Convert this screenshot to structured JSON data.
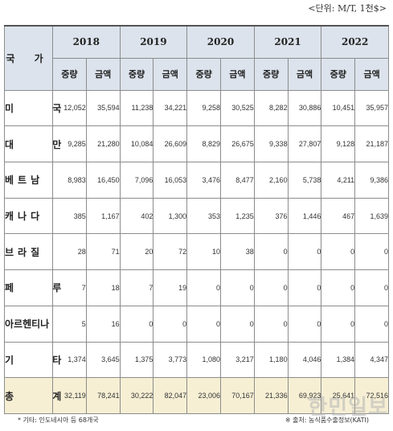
{
  "unit_label": "<단위: M/T, 1천$>",
  "header": {
    "country": "국 가",
    "years": [
      "2018",
      "2019",
      "2020",
      "2021",
      "2022"
    ],
    "sub_volume": "중량",
    "sub_amount": "금액"
  },
  "rows": [
    {
      "country": "미 국",
      "values": [
        "12,052",
        "35,594",
        "11,238",
        "34,221",
        "9,258",
        "30,525",
        "8,282",
        "30,886",
        "10,451",
        "35,957"
      ]
    },
    {
      "country": "대 만",
      "values": [
        "9,285",
        "21,280",
        "10,084",
        "26,609",
        "8,829",
        "26,675",
        "9,338",
        "27,807",
        "9,128",
        "21,187"
      ]
    },
    {
      "country": "베트남",
      "values": [
        "8,983",
        "16,450",
        "7,096",
        "16,053",
        "3,476",
        "8,477",
        "2,160",
        "5,738",
        "4,211",
        "9,386"
      ]
    },
    {
      "country": "캐나다",
      "values": [
        "385",
        "1,167",
        "402",
        "1,300",
        "353",
        "1,235",
        "376",
        "1,446",
        "467",
        "1,639"
      ]
    },
    {
      "country": "브라질",
      "values": [
        "28",
        "71",
        "20",
        "72",
        "10",
        "38",
        "0",
        "0",
        "0",
        "0"
      ]
    },
    {
      "country": "페 루",
      "values": [
        "7",
        "18",
        "7",
        "19",
        "0",
        "0",
        "0",
        "0",
        "0",
        "0"
      ]
    },
    {
      "country": "아르헨티나",
      "values": [
        "5",
        "16",
        "0",
        "0",
        "0",
        "0",
        "0",
        "0",
        "0",
        "0"
      ]
    },
    {
      "country": "기 타",
      "values": [
        "1,374",
        "3,645",
        "1,375",
        "3,773",
        "1,080",
        "3,217",
        "1,180",
        "4,046",
        "1,384",
        "4,347"
      ]
    }
  ],
  "total": {
    "country": "총 계",
    "values": [
      "32,119",
      "78,241",
      "30,222",
      "82,047",
      "23,006",
      "70,167",
      "21,336",
      "69,923",
      "25,641",
      "72,516"
    ]
  },
  "footnote_left": "* 기타: 인도네시아 등 68개국",
  "footnote_right": "※ 출처: 농식품수출정보(KATI)",
  "watermark": "한민일보"
}
